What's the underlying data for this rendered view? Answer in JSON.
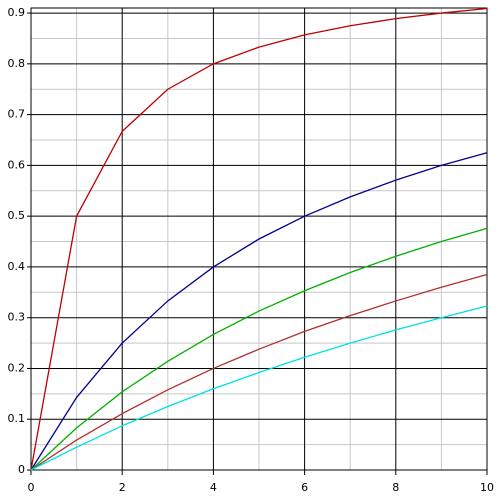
{
  "chart_data": {
    "type": "line",
    "x": [
      0,
      1,
      2,
      3,
      4,
      5,
      6,
      7,
      8,
      9,
      10
    ],
    "series": [
      {
        "color": "#c00000",
        "values": [
          0,
          0.5,
          0.667,
          0.75,
          0.8,
          0.833,
          0.857,
          0.875,
          0.889,
          0.9,
          0.909
        ]
      },
      {
        "color": "#000090",
        "values": [
          0,
          0.143,
          0.25,
          0.333,
          0.4,
          0.455,
          0.5,
          0.538,
          0.571,
          0.6,
          0.625
        ]
      },
      {
        "color": "#00b000",
        "values": [
          0,
          0.083,
          0.154,
          0.214,
          0.267,
          0.313,
          0.353,
          0.389,
          0.421,
          0.45,
          0.476
        ]
      },
      {
        "color": "#b03030",
        "values": [
          0,
          0.059,
          0.111,
          0.158,
          0.2,
          0.238,
          0.273,
          0.304,
          0.333,
          0.36,
          0.385
        ]
      },
      {
        "color": "#00e0e0",
        "values": [
          0,
          0.045,
          0.087,
          0.125,
          0.16,
          0.192,
          0.222,
          0.25,
          0.276,
          0.3,
          0.323
        ]
      }
    ],
    "xlim": [
      0,
      10
    ],
    "xticks": [
      0,
      2,
      4,
      6,
      8,
      10
    ],
    "ylim": [
      0,
      0.91
    ],
    "yticks": [
      0,
      0.1,
      0.2,
      0.3,
      0.4,
      0.5,
      0.6,
      0.7,
      0.8,
      0.9
    ],
    "grid": true,
    "minor_grid": true
  }
}
